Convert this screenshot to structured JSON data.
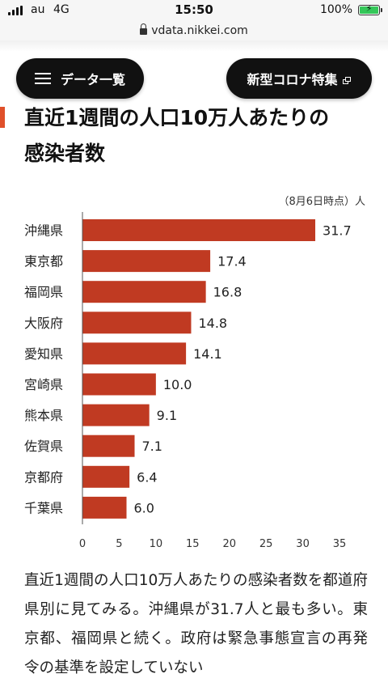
{
  "status_bar": {
    "carrier": "au",
    "network": "4G",
    "time": "15:50",
    "battery": "100%"
  },
  "browser": {
    "url": "vdata.nikkei.com"
  },
  "nav": {
    "data_list_label": "データ一覧",
    "corona_special_label": "新型コロナ特集"
  },
  "article": {
    "title_line1": "直近1週間の人口10万人あたりの",
    "title_line2": "感染者数",
    "body": "直近1週間の人口10万人あたりの感染者数を都道府県別に見てみる。沖縄県が31.7人と最も多い。東京都、福岡県と続く。政府は緊急事態宣言の再発令の基準を設定していない"
  },
  "chart_data": {
    "type": "bar",
    "orientation": "horizontal",
    "note": "（8月6日時点）人",
    "categories": [
      "沖縄県",
      "東京都",
      "福岡県",
      "大阪府",
      "愛知県",
      "宮崎県",
      "熊本県",
      "佐賀県",
      "京都府",
      "千葉県"
    ],
    "values": [
      31.7,
      17.4,
      16.8,
      14.8,
      14.1,
      10.0,
      9.1,
      7.1,
      6.4,
      6.0
    ],
    "value_labels": [
      "31.7",
      "17.4",
      "16.8",
      "14.8",
      "14.1",
      "10.0",
      "9.1",
      "7.1",
      "6.4",
      "6.0"
    ],
    "xlim": [
      0,
      35
    ],
    "x_ticks": [
      "0",
      "5",
      "10",
      "15",
      "20",
      "25",
      "30",
      "35"
    ],
    "bar_color": "#c03a22",
    "grid": false
  }
}
